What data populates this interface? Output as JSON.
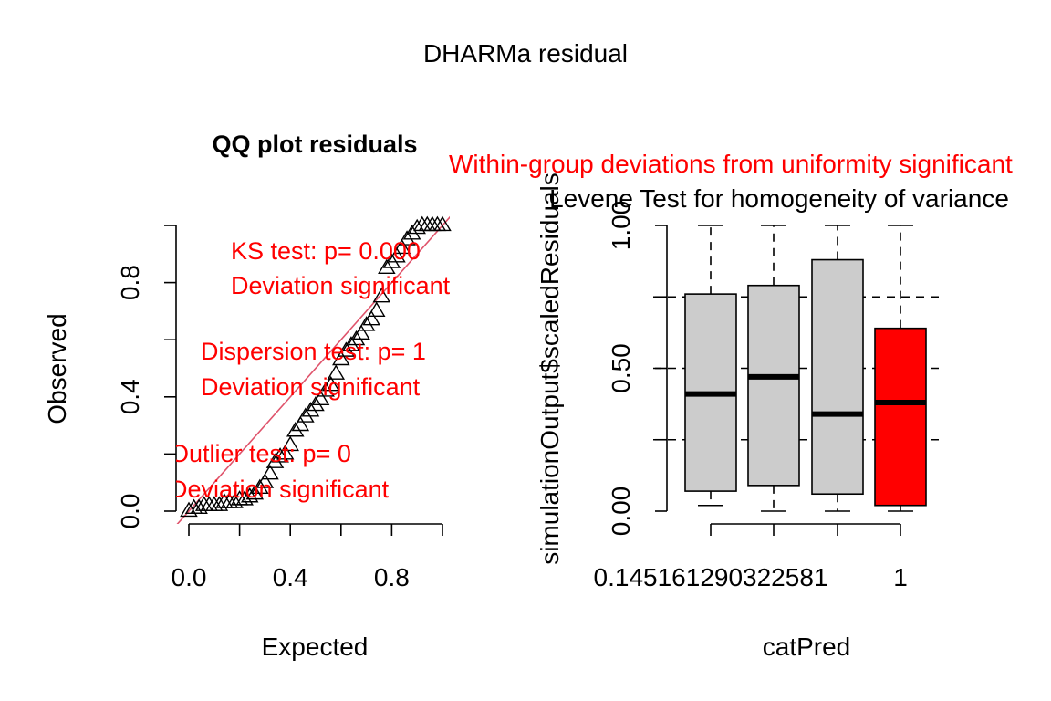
{
  "figure": {
    "title": "DHARMa residual"
  },
  "chart_data": [
    {
      "type": "scatter",
      "title": "QQ plot residuals",
      "xlabel": "Expected",
      "ylabel": "Observed",
      "xlim": [
        0,
        1
      ],
      "ylim": [
        0,
        1
      ],
      "x_ticks": [
        "0.0",
        "0.4",
        "0.8"
      ],
      "y_ticks": [
        "0.0",
        "0.4",
        "0.8"
      ],
      "marker": "triangle",
      "reference_line": {
        "from": [
          0,
          0
        ],
        "to": [
          1,
          1
        ],
        "color": "#DF536B"
      },
      "grid": false,
      "points": {
        "x": [
          0.0,
          0.02,
          0.04,
          0.06,
          0.08,
          0.1,
          0.12,
          0.14,
          0.16,
          0.18,
          0.2,
          0.22,
          0.24,
          0.26,
          0.28,
          0.3,
          0.32,
          0.34,
          0.36,
          0.38,
          0.4,
          0.42,
          0.44,
          0.46,
          0.48,
          0.5,
          0.52,
          0.54,
          0.56,
          0.58,
          0.6,
          0.62,
          0.64,
          0.66,
          0.68,
          0.7,
          0.72,
          0.74,
          0.76,
          0.78,
          0.8,
          0.82,
          0.84,
          0.86,
          0.88,
          0.9,
          0.92,
          0.94,
          0.96,
          0.98,
          1.0
        ],
        "y": [
          0.0,
          0.01,
          0.01,
          0.02,
          0.02,
          0.02,
          0.02,
          0.03,
          0.03,
          0.03,
          0.04,
          0.04,
          0.05,
          0.06,
          0.08,
          0.1,
          0.13,
          0.17,
          0.19,
          0.2,
          0.23,
          0.28,
          0.3,
          0.33,
          0.35,
          0.37,
          0.39,
          0.42,
          0.44,
          0.48,
          0.53,
          0.56,
          0.58,
          0.6,
          0.62,
          0.65,
          0.67,
          0.7,
          0.75,
          0.85,
          0.87,
          0.89,
          0.92,
          0.95,
          0.97,
          0.99,
          1.0,
          1.0,
          1.0,
          1.0,
          1.0
        ]
      },
      "annotations": [
        {
          "line1": "KS test: p= 0.000",
          "line2": "Deviation  significant",
          "color": "#FF0000"
        },
        {
          "line1": "Dispersion test: p= 1",
          "line2": "Deviation  significant",
          "color": "#FF0000"
        },
        {
          "line1": "Outlier test: p= 0",
          "line2": "Deviation  significant",
          "color": "#FF0000"
        }
      ]
    },
    {
      "type": "boxplot",
      "title": "Levene Test for homogeneity of variance",
      "subtitle": "Within-group deviations from uniformity significant",
      "subtitle_color": "#FF0000",
      "xlabel": "catPred",
      "ylabel": "simulationOutput$scaledResiduals",
      "ylim": [
        0,
        1
      ],
      "y_ticks": [
        "0.00",
        "0.50",
        "1.00"
      ],
      "categories": [
        "0.145161290322581",
        "",
        "",
        "1"
      ],
      "reference_lines": [
        0.25,
        0.5,
        0.75
      ],
      "boxes": [
        {
          "min": 0.02,
          "q1": 0.07,
          "median": 0.41,
          "q3": 0.76,
          "max": 1.0,
          "color": "#CCCCCC"
        },
        {
          "min": 0.0,
          "q1": 0.09,
          "median": 0.47,
          "q3": 0.79,
          "max": 1.0,
          "color": "#CCCCCC"
        },
        {
          "min": 0.0,
          "q1": 0.06,
          "median": 0.34,
          "q3": 0.88,
          "max": 1.0,
          "color": "#CCCCCC"
        },
        {
          "min": 0.0,
          "q1": 0.02,
          "median": 0.38,
          "q3": 0.64,
          "max": 1.0,
          "color": "#FF0000"
        }
      ]
    }
  ]
}
